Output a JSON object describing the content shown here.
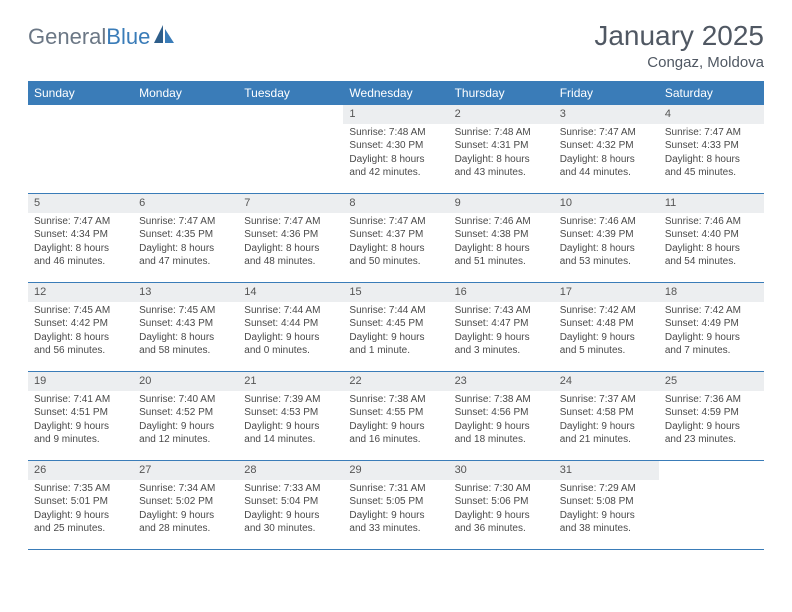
{
  "brand": {
    "name_a": "General",
    "name_b": "Blue"
  },
  "title": "January 2025",
  "location": "Congaz, Moldova",
  "colors": {
    "header_bg": "#3a7cb8",
    "header_text": "#ffffff",
    "daynum_bg": "#eceef0",
    "row_border": "#3a7cb8",
    "title_color": "#505863",
    "logo_gray": "#6b7785",
    "logo_blue": "#3a7cb8",
    "cell_text": "#4a4a4a"
  },
  "weekdays": [
    "Sunday",
    "Monday",
    "Tuesday",
    "Wednesday",
    "Thursday",
    "Friday",
    "Saturday"
  ],
  "weeks": [
    [
      null,
      null,
      null,
      {
        "n": "1",
        "sr": "7:48 AM",
        "ss": "4:30 PM",
        "dl": "8 hours and 42 minutes."
      },
      {
        "n": "2",
        "sr": "7:48 AM",
        "ss": "4:31 PM",
        "dl": "8 hours and 43 minutes."
      },
      {
        "n": "3",
        "sr": "7:47 AM",
        "ss": "4:32 PM",
        "dl": "8 hours and 44 minutes."
      },
      {
        "n": "4",
        "sr": "7:47 AM",
        "ss": "4:33 PM",
        "dl": "8 hours and 45 minutes."
      }
    ],
    [
      {
        "n": "5",
        "sr": "7:47 AM",
        "ss": "4:34 PM",
        "dl": "8 hours and 46 minutes."
      },
      {
        "n": "6",
        "sr": "7:47 AM",
        "ss": "4:35 PM",
        "dl": "8 hours and 47 minutes."
      },
      {
        "n": "7",
        "sr": "7:47 AM",
        "ss": "4:36 PM",
        "dl": "8 hours and 48 minutes."
      },
      {
        "n": "8",
        "sr": "7:47 AM",
        "ss": "4:37 PM",
        "dl": "8 hours and 50 minutes."
      },
      {
        "n": "9",
        "sr": "7:46 AM",
        "ss": "4:38 PM",
        "dl": "8 hours and 51 minutes."
      },
      {
        "n": "10",
        "sr": "7:46 AM",
        "ss": "4:39 PM",
        "dl": "8 hours and 53 minutes."
      },
      {
        "n": "11",
        "sr": "7:46 AM",
        "ss": "4:40 PM",
        "dl": "8 hours and 54 minutes."
      }
    ],
    [
      {
        "n": "12",
        "sr": "7:45 AM",
        "ss": "4:42 PM",
        "dl": "8 hours and 56 minutes."
      },
      {
        "n": "13",
        "sr": "7:45 AM",
        "ss": "4:43 PM",
        "dl": "8 hours and 58 minutes."
      },
      {
        "n": "14",
        "sr": "7:44 AM",
        "ss": "4:44 PM",
        "dl": "9 hours and 0 minutes."
      },
      {
        "n": "15",
        "sr": "7:44 AM",
        "ss": "4:45 PM",
        "dl": "9 hours and 1 minute."
      },
      {
        "n": "16",
        "sr": "7:43 AM",
        "ss": "4:47 PM",
        "dl": "9 hours and 3 minutes."
      },
      {
        "n": "17",
        "sr": "7:42 AM",
        "ss": "4:48 PM",
        "dl": "9 hours and 5 minutes."
      },
      {
        "n": "18",
        "sr": "7:42 AM",
        "ss": "4:49 PM",
        "dl": "9 hours and 7 minutes."
      }
    ],
    [
      {
        "n": "19",
        "sr": "7:41 AM",
        "ss": "4:51 PM",
        "dl": "9 hours and 9 minutes."
      },
      {
        "n": "20",
        "sr": "7:40 AM",
        "ss": "4:52 PM",
        "dl": "9 hours and 12 minutes."
      },
      {
        "n": "21",
        "sr": "7:39 AM",
        "ss": "4:53 PM",
        "dl": "9 hours and 14 minutes."
      },
      {
        "n": "22",
        "sr": "7:38 AM",
        "ss": "4:55 PM",
        "dl": "9 hours and 16 minutes."
      },
      {
        "n": "23",
        "sr": "7:38 AM",
        "ss": "4:56 PM",
        "dl": "9 hours and 18 minutes."
      },
      {
        "n": "24",
        "sr": "7:37 AM",
        "ss": "4:58 PM",
        "dl": "9 hours and 21 minutes."
      },
      {
        "n": "25",
        "sr": "7:36 AM",
        "ss": "4:59 PM",
        "dl": "9 hours and 23 minutes."
      }
    ],
    [
      {
        "n": "26",
        "sr": "7:35 AM",
        "ss": "5:01 PM",
        "dl": "9 hours and 25 minutes."
      },
      {
        "n": "27",
        "sr": "7:34 AM",
        "ss": "5:02 PM",
        "dl": "9 hours and 28 minutes."
      },
      {
        "n": "28",
        "sr": "7:33 AM",
        "ss": "5:04 PM",
        "dl": "9 hours and 30 minutes."
      },
      {
        "n": "29",
        "sr": "7:31 AM",
        "ss": "5:05 PM",
        "dl": "9 hours and 33 minutes."
      },
      {
        "n": "30",
        "sr": "7:30 AM",
        "ss": "5:06 PM",
        "dl": "9 hours and 36 minutes."
      },
      {
        "n": "31",
        "sr": "7:29 AM",
        "ss": "5:08 PM",
        "dl": "9 hours and 38 minutes."
      },
      null
    ]
  ],
  "labels": {
    "sunrise": "Sunrise:",
    "sunset": "Sunset:",
    "daylight": "Daylight:"
  }
}
